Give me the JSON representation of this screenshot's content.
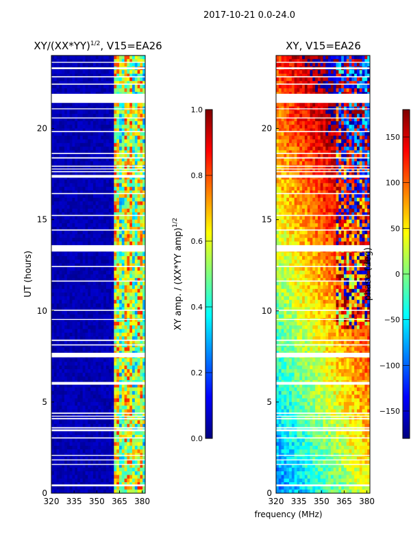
{
  "suptitle": "2017-10-21 0.0-24.0",
  "shared_xlabel": "frequency (MHz)",
  "colors": {
    "jet": [
      "#00007f",
      "#0000ff",
      "#007fff",
      "#00ffff",
      "#7fff7f",
      "#ffff00",
      "#ff7f00",
      "#ff0000",
      "#7f0000"
    ],
    "gap": "#ffffff"
  },
  "chart_data": [
    {
      "type": "heatmap",
      "title_main": "XY/(XX*YY)",
      "title_exp": "1/2",
      "title_tail": ", V15=EA26",
      "xlabel": "",
      "ylabel": "UT (hours)",
      "xlim": [
        320,
        382
      ],
      "ylim": [
        0,
        24
      ],
      "xticks": [
        320,
        335,
        350,
        365,
        380
      ],
      "yticks": [
        0,
        5,
        10,
        15,
        20
      ],
      "colorbar": {
        "label_main": "XY amp. / (XX*YY amp)",
        "label_exp": "1/2",
        "vmin": 0.0,
        "vmax": 1.0,
        "ticks": [
          "0.0",
          "0.2",
          "0.4",
          "0.6",
          "0.8",
          "1.0"
        ]
      },
      "description_of_values": "near 0 below 360 MHz; patchy 0.3-0.7 between 362 and 382 MHz"
    },
    {
      "type": "heatmap",
      "title_main": "XY, V15=EA26",
      "title_exp": "",
      "title_tail": "",
      "xlabel": "",
      "ylabel": "",
      "xlim": [
        320,
        382
      ],
      "ylim": [
        0,
        24
      ],
      "xticks": [
        320,
        335,
        350,
        365,
        380
      ],
      "yticks": [
        0,
        5,
        10,
        15,
        20
      ],
      "colorbar": {
        "label_main": "phase (deg)",
        "label_exp": "",
        "vmin": -180,
        "vmax": 180,
        "ticks": [
          "−150",
          "−100",
          "−50",
          "0",
          "50",
          "100",
          "150"
        ]
      },
      "description_of_values": "phase around -50..0 deg early UT, wrapping through ±180 deg later"
    }
  ],
  "gaps_ut_hours": [
    [
      0.38,
      0.48
    ],
    [
      1.55,
      1.6
    ],
    [
      1.8,
      1.85
    ],
    [
      2.05,
      2.1
    ],
    [
      3.0,
      3.06
    ],
    [
      3.4,
      3.5
    ],
    [
      3.55,
      3.62
    ],
    [
      4.05,
      4.12
    ],
    [
      4.2,
      4.25
    ],
    [
      4.35,
      4.42
    ],
    [
      5.95,
      6.1
    ],
    [
      7.45,
      7.7
    ],
    [
      8.1,
      8.16
    ],
    [
      8.35,
      8.42
    ],
    [
      9.5,
      9.55
    ],
    [
      10.0,
      10.06
    ],
    [
      11.6,
      11.66
    ],
    [
      12.4,
      12.46
    ],
    [
      13.25,
      13.6
    ],
    [
      14.4,
      14.46
    ],
    [
      15.2,
      15.26
    ],
    [
      16.4,
      16.46
    ],
    [
      17.3,
      17.45
    ],
    [
      17.6,
      17.66
    ],
    [
      17.75,
      17.8
    ],
    [
      17.9,
      17.96
    ],
    [
      18.35,
      18.42
    ],
    [
      18.6,
      18.66
    ],
    [
      19.8,
      19.86
    ],
    [
      20.55,
      20.6
    ],
    [
      21.05,
      21.1
    ],
    [
      21.4,
      21.9
    ],
    [
      22.4,
      22.46
    ],
    [
      22.8,
      22.86
    ],
    [
      23.25,
      23.35
    ],
    [
      23.6,
      23.65
    ]
  ]
}
